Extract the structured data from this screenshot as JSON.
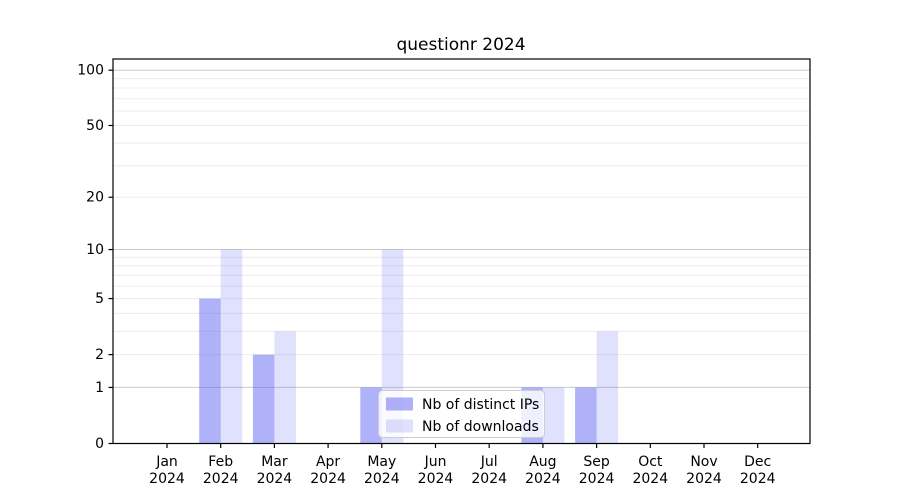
{
  "chart_data": {
    "type": "bar",
    "title": "questionr 2024",
    "xlabel": "",
    "ylabel": "",
    "yscale": "log1p",
    "ylim": [
      0,
      115
    ],
    "grid": true,
    "legend_position": "lower center",
    "categories": [
      "Jan\n2024",
      "Feb\n2024",
      "Mar\n2024",
      "Apr\n2024",
      "May\n2024",
      "Jun\n2024",
      "Jul\n2024",
      "Aug\n2024",
      "Sep\n2024",
      "Oct\n2024",
      "Nov\n2024",
      "Dec\n2024"
    ],
    "series": [
      {
        "name": "Nb of distinct IPs",
        "color": "rgba(88,94,240,0.48)",
        "values": [
          0,
          5,
          2,
          0,
          1,
          0,
          0,
          1,
          1,
          0,
          0,
          0
        ]
      },
      {
        "name": "Nb of downloads",
        "color": "rgba(88,94,240,0.19)",
        "values": [
          0,
          10,
          3,
          0,
          10,
          0,
          0,
          1,
          3,
          0,
          0,
          0
        ]
      }
    ],
    "yticks": [
      0,
      1,
      2,
      5,
      10,
      20,
      50,
      100
    ],
    "major_gridlines": [
      1,
      10,
      100
    ],
    "minor_gridlines": [
      2,
      3,
      4,
      5,
      6,
      7,
      8,
      9,
      20,
      30,
      40,
      50,
      60,
      70,
      80,
      90
    ],
    "colors": {
      "major_grid": "#cccccc",
      "minor_grid": "#ececec",
      "spine": "#000000",
      "legend_border": "#cccccc"
    }
  }
}
